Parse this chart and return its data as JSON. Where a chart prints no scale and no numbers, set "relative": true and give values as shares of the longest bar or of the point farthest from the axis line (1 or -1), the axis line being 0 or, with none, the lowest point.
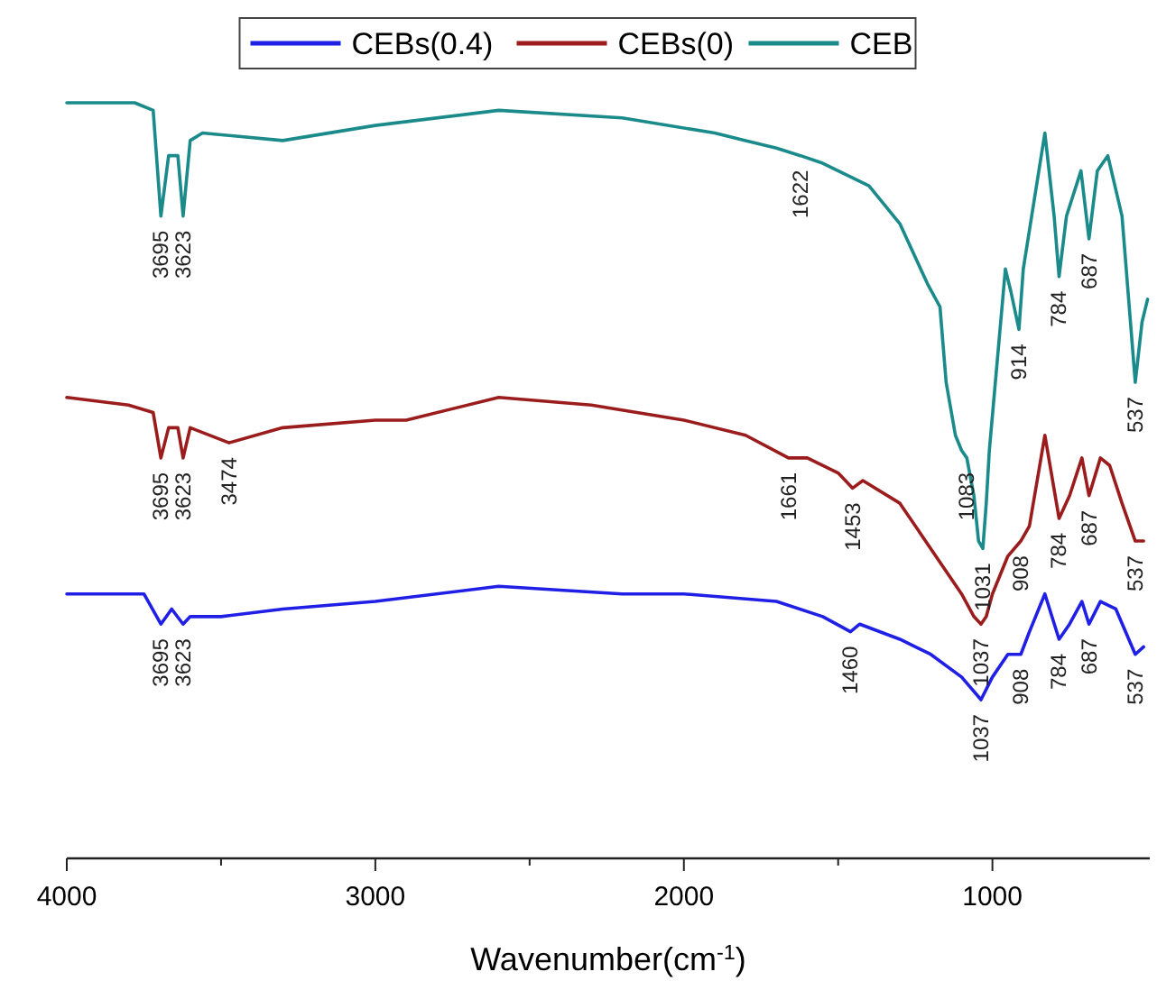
{
  "chart_data": {
    "type": "line",
    "relative": true,
    "xlabel": "Wavenumber(cm$^{-1}$)",
    "xlim": [
      4000,
      490
    ],
    "xticks": [
      4000,
      {
        "value": 3500,
        "label": null
      },
      3000,
      {
        "value": 2500,
        "label": null
      },
      2000,
      {
        "value": 1500,
        "label": null
      },
      1000
    ],
    "legend": "top",
    "grid": false,
    "tick_labels": "x",
    "line_style": "solid",
    "series": [
      {
        "name": "CEBs(0.4)",
        "color": "#1f1fe6",
        "x": [
          4000,
          3750,
          3695,
          3660,
          3623,
          3600,
          3500,
          3300,
          3000,
          2600,
          2200,
          2000,
          1700,
          1550,
          1460,
          1430,
          1300,
          1200,
          1100,
          1037,
          1000,
          950,
          908,
          880,
          830,
          784,
          750,
          710,
          687,
          650,
          600,
          537,
          510
        ],
        "values": [
          0.35,
          0.35,
          0.31,
          0.33,
          0.31,
          0.32,
          0.32,
          0.33,
          0.34,
          0.36,
          0.35,
          0.35,
          0.34,
          0.32,
          0.3,
          0.31,
          0.29,
          0.27,
          0.24,
          0.21,
          0.24,
          0.27,
          0.27,
          0.3,
          0.35,
          0.29,
          0.31,
          0.34,
          0.31,
          0.34,
          0.33,
          0.27,
          0.28
        ]
      },
      {
        "name": "CEBs(0)",
        "color": "#9b1c1c",
        "x": [
          4000,
          3800,
          3720,
          3695,
          3670,
          3640,
          3623,
          3600,
          3474,
          3300,
          3000,
          2900,
          2600,
          2300,
          2000,
          1800,
          1661,
          1600,
          1500,
          1453,
          1420,
          1300,
          1200,
          1100,
          1060,
          1037,
          1020,
          1000,
          950,
          908,
          880,
          830,
          784,
          750,
          710,
          687,
          650,
          620,
          580,
          537,
          510
        ],
        "values": [
          0.61,
          0.6,
          0.59,
          0.53,
          0.57,
          0.57,
          0.53,
          0.57,
          0.55,
          0.57,
          0.58,
          0.58,
          0.61,
          0.6,
          0.58,
          0.56,
          0.53,
          0.53,
          0.51,
          0.49,
          0.5,
          0.47,
          0.41,
          0.35,
          0.32,
          0.31,
          0.32,
          0.35,
          0.4,
          0.42,
          0.44,
          0.56,
          0.45,
          0.48,
          0.53,
          0.48,
          0.53,
          0.52,
          0.47,
          0.42,
          0.42
        ]
      },
      {
        "name": "CEB",
        "color": "#1a8a8a",
        "x": [
          4000,
          3780,
          3720,
          3695,
          3670,
          3640,
          3623,
          3600,
          3560,
          3300,
          3000,
          2600,
          2200,
          1900,
          1800,
          1700,
          1622,
          1550,
          1400,
          1300,
          1210,
          1170,
          1150,
          1120,
          1100,
          1083,
          1060,
          1045,
          1031,
          1020,
          1010,
          958,
          940,
          914,
          900,
          830,
          800,
          784,
          760,
          713,
          687,
          660,
          626,
          580,
          537,
          515,
          497
        ],
        "values": [
          1.0,
          1.0,
          0.99,
          0.85,
          0.93,
          0.93,
          0.85,
          0.95,
          0.96,
          0.95,
          0.97,
          0.99,
          0.98,
          0.96,
          0.95,
          0.94,
          0.93,
          0.92,
          0.89,
          0.84,
          0.76,
          0.73,
          0.63,
          0.56,
          0.54,
          0.53,
          0.48,
          0.42,
          0.41,
          0.47,
          0.54,
          0.78,
          0.75,
          0.7,
          0.78,
          0.96,
          0.85,
          0.77,
          0.85,
          0.91,
          0.82,
          0.91,
          0.93,
          0.85,
          0.63,
          0.71,
          0.74
        ]
      }
    ],
    "annotations": [
      {
        "text": "3695",
        "x": 3695,
        "y": 0.85
      },
      {
        "text": "3623",
        "x": 3623,
        "y": 0.85
      },
      {
        "text": "1622",
        "x": 1622,
        "y": 0.93
      },
      {
        "text": "1083",
        "x": 1083,
        "y": 0.53
      },
      {
        "text": "1031",
        "x": 1031,
        "y": 0.41
      },
      {
        "text": "914",
        "x": 914,
        "y": 0.7
      },
      {
        "text": "784",
        "x": 784,
        "y": 0.77
      },
      {
        "text": "687",
        "x": 687,
        "y": 0.82
      },
      {
        "text": "537",
        "x": 537,
        "y": 0.63
      },
      {
        "text": "3695",
        "x": 3695,
        "y": 0.53
      },
      {
        "text": "3623",
        "x": 3623,
        "y": 0.53
      },
      {
        "text": "3474",
        "x": 3474,
        "y": 0.55
      },
      {
        "text": "1661",
        "x": 1661,
        "y": 0.53
      },
      {
        "text": "1453",
        "x": 1453,
        "y": 0.49
      },
      {
        "text": "1037",
        "x": 1037,
        "y": 0.31
      },
      {
        "text": "908",
        "x": 908,
        "y": 0.42
      },
      {
        "text": "784",
        "x": 784,
        "y": 0.45
      },
      {
        "text": "687",
        "x": 687,
        "y": 0.48
      },
      {
        "text": "537",
        "x": 537,
        "y": 0.42
      },
      {
        "text": "3695",
        "x": 3695,
        "y": 0.31
      },
      {
        "text": "3623",
        "x": 3623,
        "y": 0.31
      },
      {
        "text": "1460",
        "x": 1460,
        "y": 0.3
      },
      {
        "text": "1037",
        "x": 1037,
        "y": 0.21
      },
      {
        "text": "908",
        "x": 908,
        "y": 0.27
      },
      {
        "text": "784",
        "x": 784,
        "y": 0.29
      },
      {
        "text": "687",
        "x": 687,
        "y": 0.31
      },
      {
        "text": "537",
        "x": 537,
        "y": 0.27
      }
    ]
  }
}
